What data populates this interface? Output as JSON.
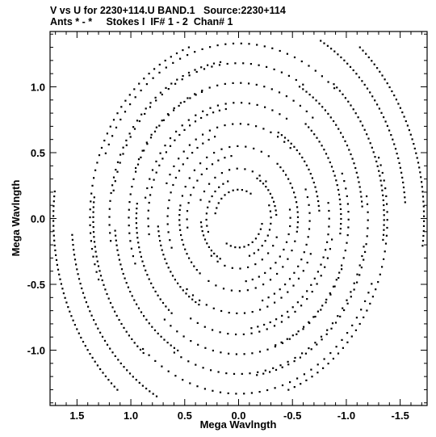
{
  "header": {
    "title_line1": "V vs U for 2230+114.U BAND.1   Source:2230+114",
    "title_line2": "Ants * - *     Stokes I  IF# 1 - 2  Chan# 1"
  },
  "chart_data": {
    "type": "scatter",
    "title": "V vs U for 2230+114.U BAND.1   Source:2230+114",
    "subtitle": "Ants * - *     Stokes I  IF# 1 - 2  Chan# 1",
    "xlabel": "Mega Wavlngth",
    "ylabel": "Mega Wavlngth",
    "xlim": [
      1.75,
      -1.75
    ],
    "ylim": [
      -1.42,
      1.42
    ],
    "x_reversed": true,
    "x_ticks": [
      "1.5",
      "1.0",
      "0.5",
      "0.0",
      "-0.5",
      "-1.0",
      "-1.5"
    ],
    "x_tick_values": [
      1.5,
      1.0,
      0.5,
      0.0,
      -0.5,
      -1.0,
      -1.5
    ],
    "y_ticks": [
      "1.0",
      "0.5",
      "0.0",
      "-0.5",
      "-1.0"
    ],
    "y_tick_values": [
      1.0,
      0.5,
      0.0,
      -0.5,
      -1.0
    ],
    "marker_color": "#000000",
    "track_families": [
      {
        "angle_deg": 70,
        "arc_deg": 55,
        "radii": [
          0.22,
          0.38,
          0.55,
          0.72,
          0.88,
          1.03,
          1.18,
          1.33
        ]
      },
      {
        "angle_deg": -28,
        "arc_deg": 28,
        "radii": [
          0.35,
          0.55,
          0.75,
          0.95,
          1.15,
          1.35,
          1.55,
          1.72
        ]
      },
      {
        "angle_deg": 30,
        "arc_deg": 45,
        "radii": [
          0.3,
          0.48,
          0.66,
          0.84,
          1.02,
          1.2,
          1.38
        ]
      }
    ]
  }
}
